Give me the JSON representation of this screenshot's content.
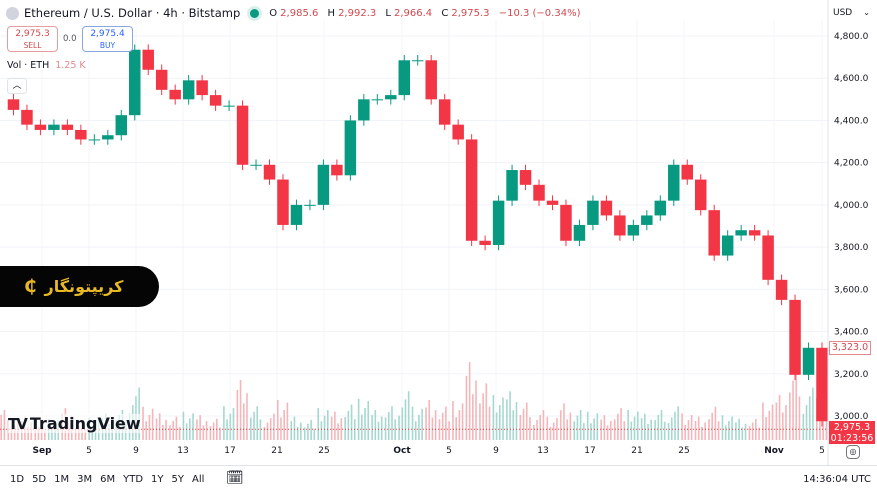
{
  "header": {
    "title": "Ethereum / U.S. Dollar · 4h · Bitstamp",
    "o_label": "O",
    "o": "2,985.6",
    "h_label": "H",
    "h": "2,992.3",
    "l_label": "L",
    "l": "2,966.4",
    "c_label": "C",
    "c": "2,975.3",
    "change": "−10.3 (−0.34%)"
  },
  "trade": {
    "sell_price": "2,975.3",
    "sell_label": "SELL",
    "spread": "0.0",
    "buy_price": "2,975.4",
    "buy_label": "BUY"
  },
  "volume": {
    "label": "Vol · ETH",
    "value": "1.25 K"
  },
  "currency": "USD",
  "watermark": {
    "text": "کریپتونگار",
    "icon": "bitcoin-c-icon"
  },
  "branding": "TradingView",
  "price_labels": {
    "last_high": "3,323.0",
    "current": "2,975.3",
    "countdown": "01:23:56"
  },
  "timeframes": [
    "1D",
    "5D",
    "1M",
    "3M",
    "6M",
    "YTD",
    "1Y",
    "5Y",
    "All"
  ],
  "clock": "14:36:04 UTC",
  "colors": {
    "up": "#089981",
    "down": "#f23645",
    "vol_up": "#a6d8d0",
    "vol_down": "#f4b6b9"
  },
  "chart_data": {
    "type": "candlestick",
    "ylim": [
      3000,
      4800
    ],
    "y_ticks": [
      "4,800.0",
      "4,600.0",
      "4,400.0",
      "4,200.0",
      "4,000.0",
      "3,800.0",
      "3,600.0",
      "3,400.0",
      "3,200.0",
      "3,000.0"
    ],
    "x_ticks": [
      {
        "label": "Sep",
        "month": true
      },
      {
        "label": "5"
      },
      {
        "label": "9"
      },
      {
        "label": "13"
      },
      {
        "label": "17"
      },
      {
        "label": "21"
      },
      {
        "label": "25"
      },
      {
        "label": "Oct",
        "month": true
      },
      {
        "label": "5"
      },
      {
        "label": "9"
      },
      {
        "label": "13"
      },
      {
        "label": "17"
      },
      {
        "label": "21"
      },
      {
        "label": "25"
      },
      {
        "label": "Nov",
        "month": true
      },
      {
        "label": "5"
      }
    ],
    "closes": [
      4500,
      4450,
      4380,
      4355,
      4380,
      4355,
      4310,
      4310,
      4330,
      4425,
      4735,
      4640,
      4545,
      4500,
      4590,
      4520,
      4470,
      4470,
      4190,
      4190,
      4120,
      3905,
      4000,
      4000,
      4190,
      4140,
      4400,
      4500,
      4500,
      4520,
      4685,
      4685,
      4500,
      4380,
      4310,
      3830,
      3810,
      4020,
      4165,
      4095,
      4020,
      4000,
      3830,
      3905,
      4020,
      3950,
      3855,
      3905,
      3950,
      4020,
      4190,
      4120,
      3975,
      3760,
      3855,
      3880,
      3855,
      3645,
      3550,
      3195,
      3323,
      2975
    ],
    "volumes_k": [
      0.8,
      0.6,
      0.7,
      0.5,
      0.6,
      0.9,
      0.5,
      0.6,
      0.7,
      0.8,
      1.4,
      1.0,
      0.8,
      0.7,
      0.8,
      0.7,
      0.6,
      0.9,
      1.6,
      0.9,
      0.7,
      1.2,
      0.7,
      0.6,
      0.9,
      0.8,
      1.0,
      1.1,
      0.8,
      0.9,
      1.3,
      1.0,
      1.2,
      1.0,
      1.1,
      2.2,
      1.6,
      1.2,
      1.3,
      1.0,
      0.8,
      0.7,
      1.1,
      0.9,
      0.8,
      0.7,
      0.9,
      0.8,
      0.7,
      0.8,
      0.9,
      0.8,
      0.7,
      1.0,
      0.7,
      0.6,
      0.6,
      1.0,
      1.2,
      1.9,
      1.4,
      1.25
    ]
  }
}
